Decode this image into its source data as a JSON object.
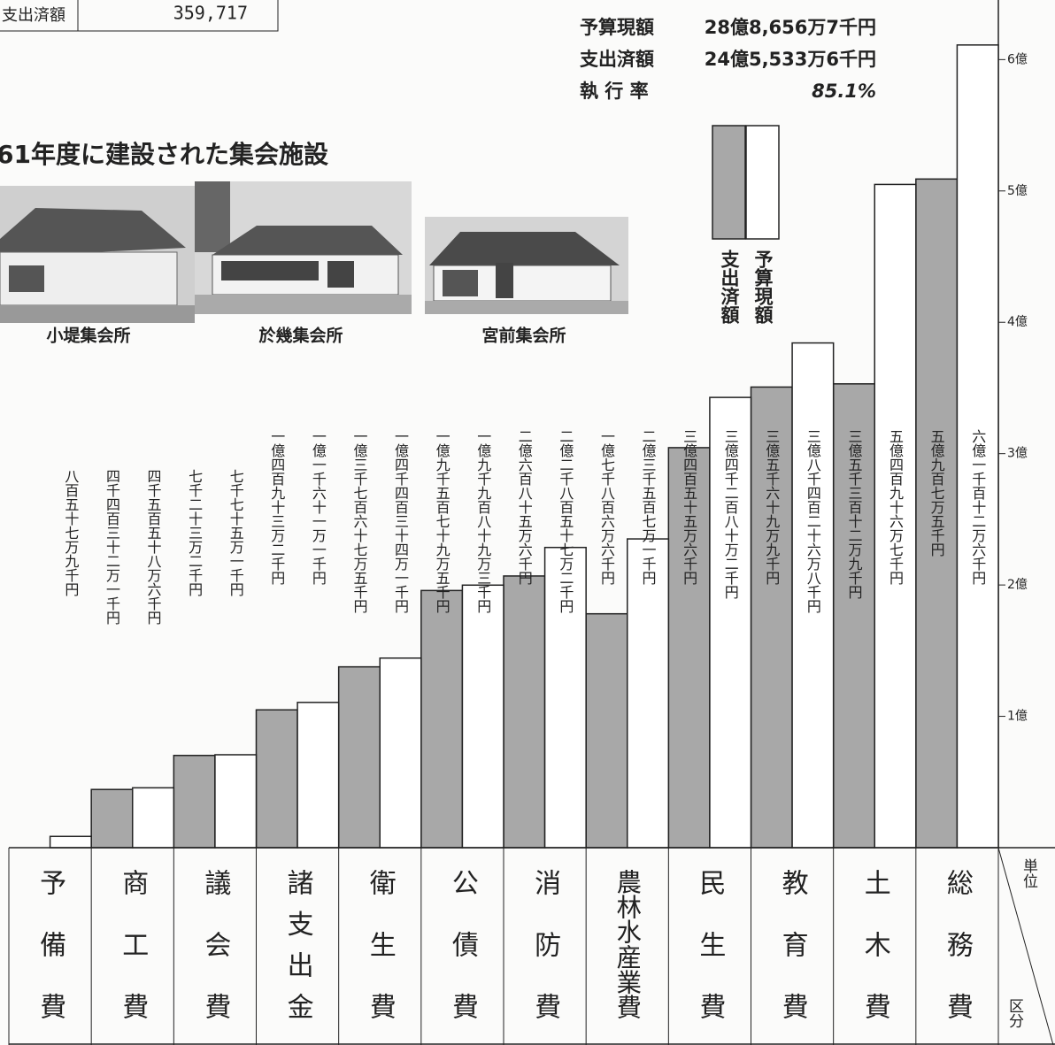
{
  "header_fragment": {
    "label": "支出済額",
    "value": "359,717"
  },
  "summary": [
    {
      "label": "予算現額",
      "value": "28億8,656万7千円"
    },
    {
      "label": "支出済額",
      "value": "24億5,533万6千円"
    },
    {
      "label": "執 行 率",
      "value": "85.1%"
    }
  ],
  "section_title": "61年度に建設された集会施設",
  "photos": [
    {
      "caption": "小堤集会所"
    },
    {
      "caption": "於幾集会所"
    },
    {
      "caption": "宮前集会所"
    }
  ],
  "chart_data": {
    "type": "bar",
    "categories": [
      "予備費",
      "商工費",
      "議会費",
      "諸支出金",
      "衛生費",
      "公債費",
      "消防費",
      "農林水産業費",
      "民生費",
      "教育費",
      "土木費",
      "総務費"
    ],
    "unit_header": "単位",
    "category_header": "区分",
    "series": [
      {
        "name": "支出済額",
        "color": "#a8a8a8",
        "values": [
          null,
          44321000,
          70232000,
          104932000,
          137675000,
          195795000,
          206856000,
          178066000,
          304556000,
          350699000,
          353129000,
          509075000
        ],
        "value_labels": [
          null,
          "四千四百三十二万一千円",
          "七千二十三万二千円",
          "一億四百九十三万二千円",
          "一億三千七百六十七万五千円",
          "一億九千五百七十九万五千円",
          "二億六百八十五万六千円",
          "一億七千八百六万六千円",
          "三億四百五十五万六千円",
          "三億五千六十九万九千円",
          "三億五千三百十二万九千円",
          "五億九百七万五千円"
        ]
      },
      {
        "name": "予算現額",
        "color": "#ffffff",
        "values": [
          8579000,
          45586000,
          70751000,
          110611000,
          144341000,
          199893000,
          228572000,
          235071000,
          342802000,
          384268000,
          504967000,
          611126000
        ],
        "value_labels": [
          "八百五十七万九千円",
          "四千五百五十八万六千円",
          "七千七十五万一千円",
          "一億一千六十一万一千円",
          "一億四千四百三十四万一千円",
          "一億九千九百八十九万三千円",
          "二億二千八百五十七万二千円",
          "二億三千五百七万一千円",
          "三億四千二百八十万二千円",
          "三億八千四百二十六万八千円",
          "五億四百九十六万七千円",
          "六億一千百十二万六千円"
        ]
      }
    ],
    "ylim": [
      0,
      642000000
    ],
    "yticks": [
      {
        "value": 100000000,
        "label": "1億"
      },
      {
        "value": 200000000,
        "label": "2億"
      },
      {
        "value": 300000000,
        "label": "3億"
      },
      {
        "value": 400000000,
        "label": "4億"
      },
      {
        "value": 500000000,
        "label": "5億"
      },
      {
        "value": 600000000,
        "label": "6億"
      }
    ],
    "grid": false
  }
}
